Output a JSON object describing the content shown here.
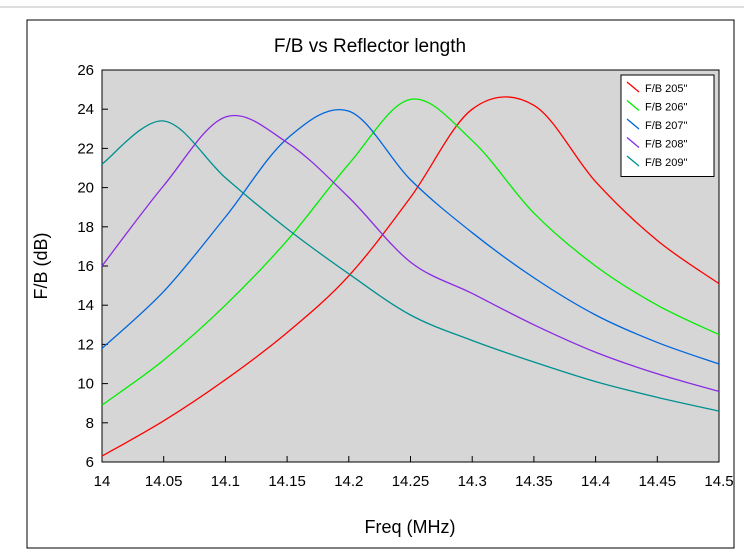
{
  "chart_data": {
    "type": "line",
    "title": "F/B vs Reflector length",
    "xlabel": "Freq (MHz)",
    "ylabel": "F/B (dB)",
    "xlim": [
      14,
      14.5
    ],
    "ylim": [
      6,
      26
    ],
    "x_ticks": [
      "14",
      "14.05",
      "14.1",
      "14.15",
      "14.2",
      "14.25",
      "14.3",
      "14.35",
      "14.4",
      "14.45",
      "14.5"
    ],
    "y_ticks": [
      "6",
      "8",
      "10",
      "12",
      "14",
      "16",
      "18",
      "20",
      "22",
      "24",
      "26"
    ],
    "grid": false,
    "legend_position": "top-right",
    "plot_background": "#d6d6d6",
    "x": [
      14,
      14.05,
      14.1,
      14.15,
      14.2,
      14.25,
      14.3,
      14.35,
      14.4,
      14.45,
      14.5
    ],
    "series": [
      {
        "name": "F/B 205\"",
        "color": "#ff0000",
        "values": [
          6.3,
          8.1,
          10.2,
          12.6,
          15.5,
          19.5,
          24.0,
          24.2,
          20.3,
          17.3,
          15.1
        ]
      },
      {
        "name": "F/B 206\"",
        "color": "#00ee00",
        "values": [
          8.9,
          11.2,
          14.0,
          17.3,
          21.2,
          24.5,
          22.4,
          18.7,
          16.0,
          14.0,
          12.5
        ]
      },
      {
        "name": "F/B 207\"",
        "color": "#0066dd",
        "values": [
          11.8,
          14.7,
          18.5,
          22.5,
          23.9,
          20.4,
          17.7,
          15.4,
          13.5,
          12.1,
          11.0
        ]
      },
      {
        "name": "F/B 208\"",
        "color": "#8a2be2",
        "values": [
          16.0,
          20.1,
          23.6,
          22.3,
          19.5,
          16.2,
          14.6,
          13.0,
          11.6,
          10.5,
          9.6
        ]
      },
      {
        "name": "F/B 209\"",
        "color": "#009090",
        "values": [
          21.2,
          23.4,
          20.5,
          17.9,
          15.6,
          13.5,
          12.2,
          11.1,
          10.1,
          9.3,
          8.6
        ]
      }
    ]
  }
}
